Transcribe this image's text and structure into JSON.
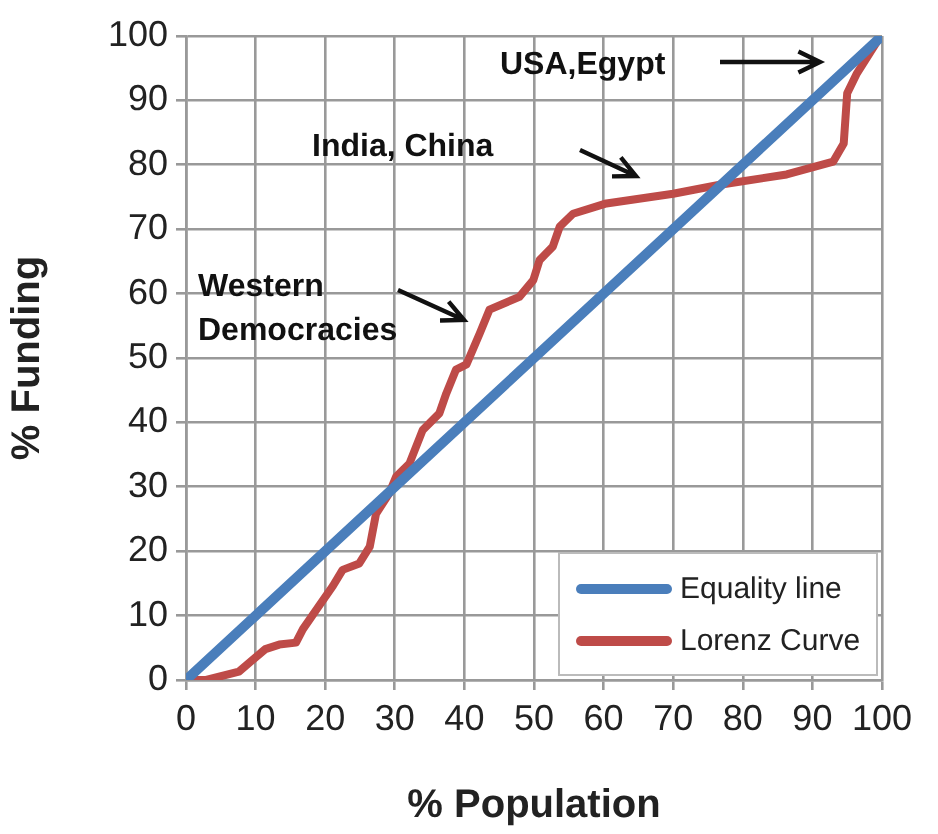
{
  "chart_data": {
    "type": "line",
    "xlabel": "% Population",
    "ylabel": "% Funding",
    "xlim": [
      0,
      100
    ],
    "xticks": [
      0,
      10,
      20,
      30,
      40,
      50,
      60,
      70,
      80,
      90,
      100
    ],
    "ylim": [
      0,
      100
    ],
    "yticks": [
      0,
      10,
      20,
      30,
      40,
      50,
      60,
      70,
      80,
      90,
      100
    ],
    "grid": true,
    "legend": "bottom right",
    "marker": "none",
    "line_style": "solid",
    "series": [
      {
        "name": "Equality line",
        "color": "#4a7ebb",
        "x": [
          0,
          100
        ],
        "values": [
          0,
          100
        ]
      },
      {
        "name": "Lorenz Curve",
        "color": "#be4b48",
        "x": [
          0,
          2.9,
          7.6,
          11.4,
          13.4,
          15.8,
          16.8,
          19.1,
          21.1,
          22.5,
          24.9,
          26.4,
          27.3,
          29.2,
          30.2,
          32.1,
          34,
          36.4,
          37.4,
          38.8,
          40.3,
          42.2,
          43.6,
          47.9,
          49.9,
          50.8,
          52.7,
          53.7,
          55.6,
          60.4,
          70,
          76.7,
          86.3,
          93,
          94.5,
          95,
          96.4,
          99.8
        ],
        "values": [
          0,
          0,
          1.3,
          4.8,
          5.5,
          5.8,
          7.9,
          11.5,
          14.6,
          17.1,
          18.1,
          20.7,
          25.8,
          29,
          31.6,
          33.6,
          38.8,
          41.4,
          44.5,
          48.2,
          49,
          53.8,
          57.5,
          59.5,
          62.1,
          65.2,
          67.3,
          70.4,
          72.4,
          74,
          75.5,
          76.9,
          78.5,
          80.5,
          83.3,
          91.1,
          94.2,
          100
        ]
      }
    ],
    "annotations": [
      "USA,Egypt",
      "India, China",
      "Western Democracies"
    ]
  }
}
